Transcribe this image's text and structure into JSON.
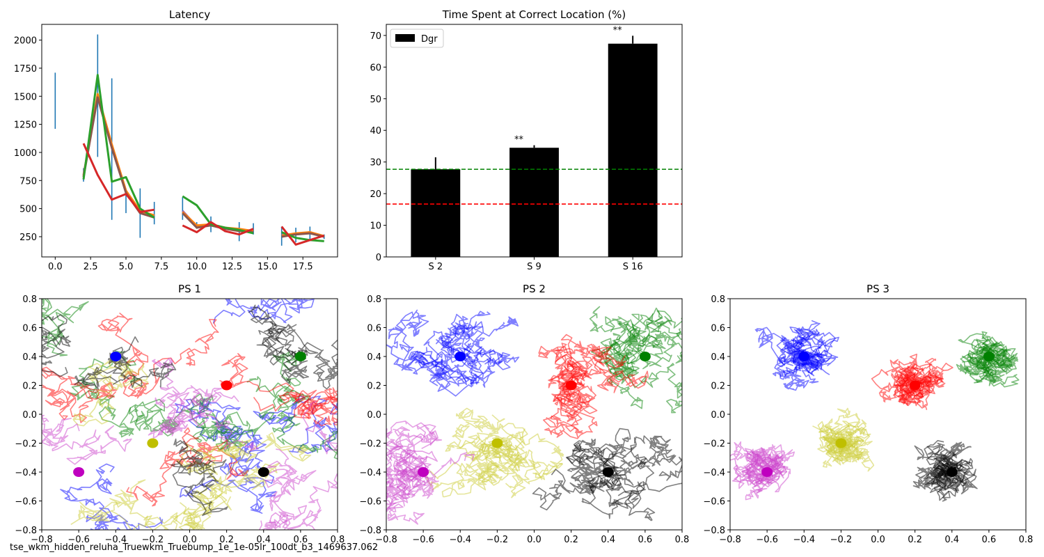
{
  "footer_caption": "tse_wkm_hidden_reluha_Truewkm_Truebump_1e_1e-05lr_100dt_b3_1469637.062",
  "chart_data": [
    {
      "type": "line",
      "title": "Latency",
      "xlim": [
        -0.95,
        19.95
      ],
      "ylim": [
        70,
        2140
      ],
      "xticks": [
        0.0,
        2.5,
        5.0,
        7.5,
        10.0,
        12.5,
        15.0,
        17.5
      ],
      "xtick_labels": [
        "0.0",
        "2.5",
        "5.0",
        "7.5",
        "10.0",
        "12.5",
        "15.0",
        "17.5"
      ],
      "yticks": [
        250,
        500,
        750,
        1000,
        1250,
        1500,
        1750,
        2000
      ],
      "ytick_labels": [
        "250",
        "500",
        "750",
        "1000",
        "1250",
        "1500",
        "1750",
        "2000"
      ],
      "error_bars": {
        "color": "#1f77b4",
        "bars": [
          {
            "x": 0,
            "low": 1210,
            "high": 1710
          },
          {
            "x": 2,
            "low": 740,
            "high": 860
          },
          {
            "x": 3,
            "low": 960,
            "high": 2050
          },
          {
            "x": 4,
            "low": 400,
            "high": 1660
          },
          {
            "x": 5,
            "low": 460,
            "high": 660
          },
          {
            "x": 6,
            "low": 240,
            "high": 680
          },
          {
            "x": 7,
            "low": 360,
            "high": 560
          },
          {
            "x": 9,
            "low": 400,
            "high": 600
          },
          {
            "x": 10,
            "low": 320,
            "high": 380
          },
          {
            "x": 11,
            "low": 290,
            "high": 430
          },
          {
            "x": 12,
            "low": 290,
            "high": 340
          },
          {
            "x": 13,
            "low": 210,
            "high": 380
          },
          {
            "x": 14,
            "low": 270,
            "high": 370
          },
          {
            "x": 16,
            "low": 170,
            "high": 340
          },
          {
            "x": 17,
            "low": 200,
            "high": 330
          },
          {
            "x": 18,
            "low": 220,
            "high": 340
          },
          {
            "x": 19,
            "low": 230,
            "high": 270
          }
        ]
      },
      "series": [
        {
          "color": "#9467bd",
          "segments": [
            {
              "x": [
                2,
                3,
                4,
                5,
                6,
                7
              ],
              "y": [
                800,
                1500,
                1050,
                650,
                470,
                430
              ]
            },
            {
              "x": [
                9,
                10,
                11,
                12,
                13,
                14
              ],
              "y": [
                480,
                340,
                360,
                320,
                310,
                290
              ]
            },
            {
              "x": [
                16,
                17,
                18,
                19
              ],
              "y": [
                270,
                270,
                290,
                250
              ]
            }
          ]
        },
        {
          "color": "#ff7f0e",
          "segments": [
            {
              "x": [
                2,
                3,
                4,
                5,
                6,
                7
              ],
              "y": [
                790,
                1520,
                1070,
                660,
                480,
                440
              ]
            },
            {
              "x": [
                9,
                10,
                11,
                12,
                13,
                14
              ],
              "y": [
                470,
                350,
                360,
                330,
                320,
                300
              ]
            },
            {
              "x": [
                16,
                17,
                18,
                19
              ],
              "y": [
                260,
                280,
                290,
                255
              ]
            }
          ]
        },
        {
          "color": "#8c564b",
          "segments": [
            {
              "x": [
                2,
                3,
                4,
                5,
                6,
                7
              ],
              "y": [
                780,
                1490,
                1040,
                640,
                460,
                420
              ]
            },
            {
              "x": [
                9,
                10,
                11,
                12,
                13,
                14
              ],
              "y": [
                460,
                330,
                350,
                320,
                300,
                290
              ]
            },
            {
              "x": [
                16,
                17,
                18,
                19
              ],
              "y": [
                250,
                270,
                280,
                250
              ]
            }
          ]
        },
        {
          "color": "#2ca02c",
          "segments": [
            {
              "x": [
                2,
                3,
                4,
                5,
                6,
                7
              ],
              "y": [
                760,
                1690,
                740,
                780,
                500,
                420
              ]
            },
            {
              "x": [
                9,
                10,
                11,
                12,
                13,
                14
              ],
              "y": [
                610,
                530,
                360,
                330,
                310,
                280
              ]
            },
            {
              "x": [
                16,
                17,
                18,
                19
              ],
              "y": [
                290,
                240,
                220,
                210
              ]
            }
          ]
        },
        {
          "color": "#d62728",
          "segments": [
            {
              "x": [
                2,
                3,
                4,
                5,
                6,
                7
              ],
              "y": [
                1080,
                800,
                580,
                630,
                470,
                490
              ]
            },
            {
              "x": [
                9,
                10,
                11,
                12,
                13,
                14
              ],
              "y": [
                350,
                290,
                380,
                300,
                270,
                320
              ]
            },
            {
              "x": [
                16,
                17,
                18,
                19
              ],
              "y": [
                340,
                180,
                220,
                260
              ]
            }
          ]
        }
      ]
    },
    {
      "type": "bar",
      "title": "Time Spent at Correct Location (%)",
      "categories": [
        "S 2",
        "S 9",
        "S 16"
      ],
      "series": [
        {
          "name": "Dgr",
          "values": [
            27.7,
            34.5,
            67.4
          ],
          "errors": [
            3.8,
            0.8,
            2.5
          ],
          "color": "#000000"
        }
      ],
      "ylim": [
        0,
        73.5
      ],
      "yticks": [
        0,
        10,
        20,
        30,
        40,
        50,
        60,
        70
      ],
      "ytick_labels": [
        "0",
        "10",
        "20",
        "30",
        "40",
        "50",
        "60",
        "70"
      ],
      "reference_lines": [
        {
          "y": 27.7,
          "color": "#008000",
          "style": "dashed"
        },
        {
          "y": 16.7,
          "color": "#ff0000",
          "style": "dashed"
        }
      ],
      "annotations": [
        {
          "category": "S 9",
          "text": "**"
        },
        {
          "category": "S 16",
          "text": "**"
        }
      ],
      "legend_position": "top-left"
    },
    {
      "type": "line",
      "title": "PS 1",
      "xlim": [
        -0.8,
        0.8
      ],
      "ylim": [
        -0.8,
        0.8
      ],
      "xticks": [
        -0.8,
        -0.6,
        -0.4,
        -0.2,
        0.0,
        0.2,
        0.4,
        0.6,
        0.8
      ],
      "xtick_labels": [
        "−0.8",
        "−0.6",
        "−0.4",
        "−0.2",
        "0.0",
        "0.2",
        "0.4",
        "0.6",
        "0.8"
      ],
      "yticks": [
        -0.8,
        -0.6,
        -0.4,
        -0.2,
        0.0,
        0.2,
        0.4,
        0.6,
        0.8
      ],
      "ytick_labels": [
        "−0.8",
        "−0.6",
        "−0.4",
        "−0.2",
        "0.0",
        "0.2",
        "0.4",
        "0.6",
        "0.8"
      ],
      "description_free_markers": [
        {
          "x": -0.4,
          "y": 0.4,
          "color": "#0000ff"
        },
        {
          "x": 0.6,
          "y": 0.4,
          "color": "#008000"
        },
        {
          "x": 0.2,
          "y": 0.2,
          "color": "#ff0000"
        },
        {
          "x": -0.2,
          "y": -0.2,
          "color": "#bfbf00"
        },
        {
          "x": -0.6,
          "y": -0.4,
          "color": "#bf00bf"
        },
        {
          "x": 0.4,
          "y": -0.4,
          "color": "#000000"
        }
      ],
      "trajectory_colors": [
        "#0000ff",
        "#008000",
        "#ff0000",
        "#bfbf00",
        "#bf00bf",
        "#000000"
      ],
      "trajectory_style": "uniform",
      "trajectory_seed": 11
    },
    {
      "type": "line",
      "title": "PS 2",
      "xlim": [
        -0.8,
        0.8
      ],
      "ylim": [
        -0.8,
        0.8
      ],
      "xticks": [
        -0.8,
        -0.6,
        -0.4,
        -0.2,
        0.0,
        0.2,
        0.4,
        0.6,
        0.8
      ],
      "xtick_labels": [
        "−0.8",
        "−0.6",
        "−0.4",
        "−0.2",
        "0.0",
        "0.2",
        "0.4",
        "0.6",
        "0.8"
      ],
      "yticks": [
        -0.8,
        -0.6,
        -0.4,
        -0.2,
        0.0,
        0.2,
        0.4,
        0.6,
        0.8
      ],
      "ytick_labels": [
        "−0.8",
        "−0.6",
        "−0.4",
        "−0.2",
        "0.0",
        "0.2",
        "0.4",
        "0.6",
        "0.8"
      ],
      "description_free_markers": [
        {
          "x": -0.4,
          "y": 0.4,
          "color": "#0000ff"
        },
        {
          "x": 0.6,
          "y": 0.4,
          "color": "#008000"
        },
        {
          "x": 0.2,
          "y": 0.2,
          "color": "#ff0000"
        },
        {
          "x": -0.2,
          "y": -0.2,
          "color": "#bfbf00"
        },
        {
          "x": -0.6,
          "y": -0.4,
          "color": "#bf00bf"
        },
        {
          "x": 0.4,
          "y": -0.4,
          "color": "#000000"
        }
      ],
      "trajectory_colors": [
        "#0000ff",
        "#008000",
        "#ff0000",
        "#bfbf00",
        "#bf00bf",
        "#000000"
      ],
      "trajectory_style": "regional",
      "trajectory_seed": 23
    },
    {
      "type": "line",
      "title": "PS 3",
      "xlim": [
        -0.8,
        0.8
      ],
      "ylim": [
        -0.8,
        0.8
      ],
      "xticks": [
        -0.8,
        -0.6,
        -0.4,
        -0.2,
        0.0,
        0.2,
        0.4,
        0.6,
        0.8
      ],
      "xtick_labels": [
        "−0.8",
        "−0.6",
        "−0.4",
        "−0.2",
        "0.0",
        "0.2",
        "0.4",
        "0.6",
        "0.8"
      ],
      "yticks": [
        -0.8,
        -0.6,
        -0.4,
        -0.2,
        0.0,
        0.2,
        0.4,
        0.6,
        0.8
      ],
      "ytick_labels": [
        "−0.8",
        "−0.6",
        "−0.4",
        "−0.2",
        "0.0",
        "0.2",
        "0.4",
        "0.6",
        "0.8"
      ],
      "description_free_markers": [
        {
          "x": -0.4,
          "y": 0.4,
          "color": "#0000ff"
        },
        {
          "x": 0.6,
          "y": 0.4,
          "color": "#008000"
        },
        {
          "x": 0.2,
          "y": 0.2,
          "color": "#ff0000"
        },
        {
          "x": -0.2,
          "y": -0.2,
          "color": "#bfbf00"
        },
        {
          "x": -0.6,
          "y": -0.4,
          "color": "#bf00bf"
        },
        {
          "x": 0.4,
          "y": -0.4,
          "color": "#000000"
        }
      ],
      "trajectory_colors": [
        "#0000ff",
        "#008000",
        "#ff0000",
        "#bfbf00",
        "#bf00bf",
        "#000000"
      ],
      "trajectory_style": "clustered",
      "trajectory_seed": 37
    }
  ]
}
